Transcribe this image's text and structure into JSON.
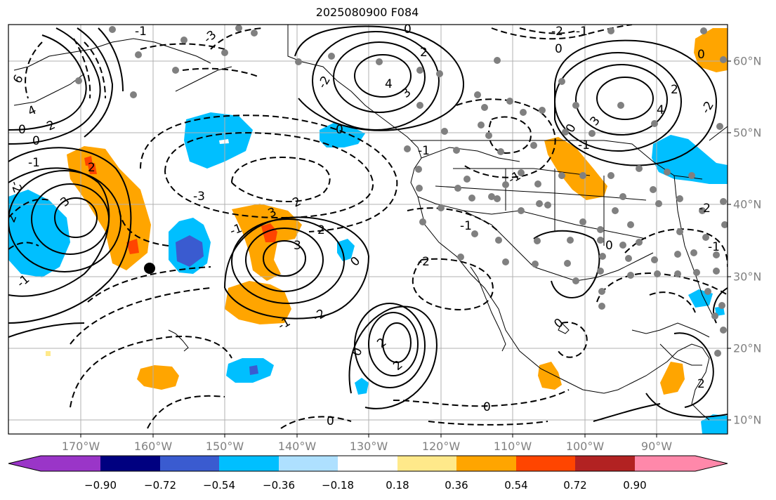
{
  "title": "2025080900 F084",
  "lon_labels": [
    "170°W",
    "160°W",
    "150°W",
    "140°W",
    "130°W",
    "120°W",
    "110°W",
    "100°W",
    "90°W"
  ],
  "lat_labels": [
    "60°N",
    "50°N",
    "40°N",
    "30°N",
    "20°N",
    "10°N"
  ],
  "colorbar": {
    "ticks": [
      "−0.90",
      "−0.72",
      "−0.54",
      "−0.36",
      "−0.18",
      "0.18",
      "0.36",
      "0.54",
      "0.72",
      "0.90"
    ],
    "colors": [
      "#9a35c8",
      "#000080",
      "#3a5bd0",
      "#00bfff",
      "#aee0ff",
      "#ffffff",
      "#ffe98a",
      "#ffa500",
      "#ff4500",
      "#b22222",
      "#ff88aa"
    ]
  },
  "contour_labels": [
    "6",
    "4",
    "2",
    "0",
    "-1",
    "-2",
    "-3",
    "-4",
    "3",
    "2",
    "-3",
    "-2",
    "-1",
    "0",
    "-1",
    "0",
    "2",
    "4",
    "3",
    "-2",
    "-1",
    "0",
    "2",
    "-3",
    "2",
    "3",
    "0",
    "-1",
    "2",
    "-1",
    "-2",
    "0",
    "-1",
    "-2",
    "-2",
    "-1",
    "2",
    "-3",
    "-2",
    "-1",
    "-2",
    "4",
    "2",
    "0",
    "-2",
    "-1",
    "2",
    "0",
    "0",
    "-2",
    "-1",
    "2",
    "0",
    "-2",
    "0"
  ],
  "colors": {
    "positive_contour": "#000000",
    "negative_contour": "#000000",
    "station": "#808080",
    "grid": "#b0b0b0",
    "coast": "#000000"
  }
}
